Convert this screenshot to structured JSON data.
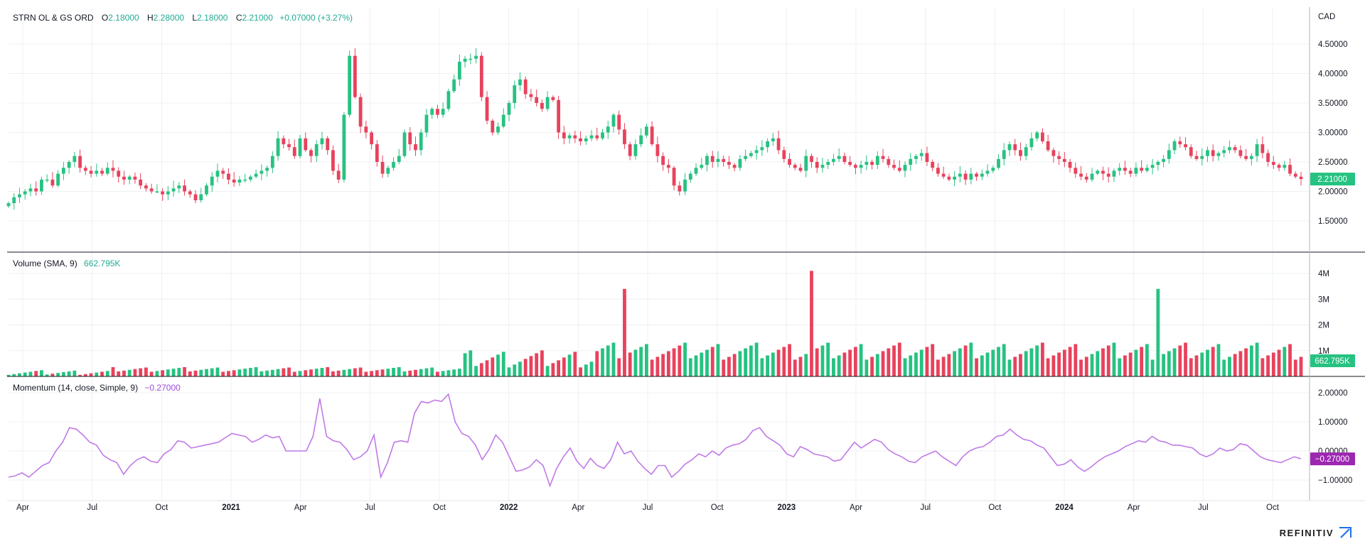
{
  "header": {
    "symbol": "STRN OL & GS ORD",
    "open_label": "O",
    "open": "2.18000",
    "high_label": "H",
    "high": "2.28000",
    "low_label": "L",
    "low": "2.18000",
    "close_label": "C",
    "close": "2.21000",
    "change": "+0.07000 (+3.27%)"
  },
  "currency": "CAD",
  "price_badge": "2.21000",
  "volume_badge": "662.795K",
  "momentum_badge": "−0.27000",
  "volume_legend": {
    "title": "Volume (SMA, 9)",
    "value": "662.795K"
  },
  "momentum_legend": {
    "title": "Momentum (14, close, Simple, 9)",
    "value": "−0.27000"
  },
  "brand": "REFINITIV",
  "colors": {
    "up": "#26c281",
    "down": "#e8425c",
    "momentum": "#c07ae6",
    "badge_up": "#26c281",
    "badge_momentum": "#9c27b0"
  },
  "chart_data": {
    "type": "candlestick",
    "x_axis": {
      "labels": [
        "Apr",
        "Jul",
        "Oct",
        "2021",
        "Apr",
        "Jul",
        "Oct",
        "2022",
        "Apr",
        "Jul",
        "Oct",
        "2023",
        "Apr",
        "Jul",
        "Oct",
        "2024",
        "Apr",
        "Jul",
        "Oct"
      ],
      "bold_labels": [
        "2021",
        "2022",
        "2023",
        "2024"
      ],
      "range": [
        "2020-03",
        "2024-10"
      ]
    },
    "price_panel": {
      "y_ticks": [
        "4.50000",
        "4.00000",
        "3.50000",
        "3.00000",
        "2.50000",
        "2.00000",
        "1.50000"
      ],
      "ylim": [
        1.1,
        4.95
      ],
      "unit": "CAD",
      "close_series": [
        1.8,
        1.9,
        1.95,
        2.0,
        2.05,
        2.0,
        2.2,
        2.2,
        2.1,
        2.3,
        2.4,
        2.5,
        2.6,
        2.4,
        2.35,
        2.3,
        2.35,
        2.3,
        2.4,
        2.35,
        2.25,
        2.2,
        2.25,
        2.2,
        2.1,
        2.05,
        2.0,
        2.0,
        1.95,
        2.0,
        2.05,
        2.1,
        2.0,
        1.95,
        1.85,
        1.95,
        2.1,
        2.25,
        2.35,
        2.3,
        2.2,
        2.15,
        2.2,
        2.2,
        2.25,
        2.3,
        2.35,
        2.4,
        2.6,
        2.9,
        2.8,
        2.75,
        2.6,
        2.9,
        2.7,
        2.6,
        2.8,
        2.9,
        2.7,
        2.35,
        2.2,
        3.3,
        4.3,
        3.6,
        3.1,
        3.0,
        2.8,
        2.5,
        2.3,
        2.4,
        2.5,
        2.6,
        3.0,
        2.8,
        2.7,
        3.0,
        3.3,
        3.4,
        3.3,
        3.4,
        3.7,
        3.9,
        4.2,
        4.25,
        4.25,
        4.3,
        3.6,
        3.2,
        3.0,
        3.1,
        3.3,
        3.5,
        3.8,
        3.9,
        3.65,
        3.6,
        3.5,
        3.4,
        3.6,
        3.55,
        3.0,
        2.9,
        2.95,
        2.9,
        2.85,
        2.9,
        2.95,
        2.9,
        3.0,
        3.1,
        3.3,
        3.05,
        2.8,
        2.6,
        2.8,
        2.95,
        3.1,
        2.8,
        2.6,
        2.45,
        2.4,
        2.1,
        2.0,
        2.2,
        2.3,
        2.4,
        2.45,
        2.6,
        2.5,
        2.55,
        2.5,
        2.45,
        2.4,
        2.55,
        2.6,
        2.65,
        2.7,
        2.75,
        2.85,
        2.9,
        2.7,
        2.55,
        2.45,
        2.4,
        2.35,
        2.6,
        2.5,
        2.4,
        2.45,
        2.5,
        2.55,
        2.6,
        2.5,
        2.45,
        2.4,
        2.45,
        2.5,
        2.45,
        2.6,
        2.55,
        2.45,
        2.4,
        2.35,
        2.45,
        2.55,
        2.6,
        2.65,
        2.5,
        2.4,
        2.3,
        2.25,
        2.2,
        2.25,
        2.3,
        2.2,
        2.3,
        2.25,
        2.3,
        2.35,
        2.4,
        2.55,
        2.7,
        2.8,
        2.7,
        2.6,
        2.75,
        2.9,
        3.0,
        2.85,
        2.7,
        2.6,
        2.55,
        2.5,
        2.4,
        2.3,
        2.25,
        2.2,
        2.3,
        2.35,
        2.3,
        2.25,
        2.35,
        2.4,
        2.35,
        2.3,
        2.4,
        2.35,
        2.4,
        2.45,
        2.5,
        2.55,
        2.7,
        2.85,
        2.8,
        2.75,
        2.6,
        2.55,
        2.6,
        2.7,
        2.6,
        2.65,
        2.7,
        2.75,
        2.7,
        2.6,
        2.55,
        2.6,
        2.8,
        2.65,
        2.5,
        2.45,
        2.4,
        2.45,
        2.3,
        2.25,
        2.21
      ]
    },
    "volume_panel": {
      "y_ticks": [
        "4M",
        "3M",
        "2M",
        "1M"
      ],
      "ylim": [
        0,
        4200000
      ],
      "sma_period": 9,
      "spikes": [
        {
          "month": "2022-06",
          "value": 3400000,
          "direction": "down"
        },
        {
          "month": "2023-02",
          "value": 4100000,
          "direction": "down"
        },
        {
          "month": "2024-05",
          "value": 3400000,
          "direction": "down"
        }
      ]
    },
    "momentum_panel": {
      "y_ticks": [
        "2.00000",
        "1.00000",
        "0.00000",
        "−1.00000"
      ],
      "ylim": [
        -1.6,
        2.2
      ],
      "params": "14, close, Simple, 9",
      "series": [
        -0.9,
        -0.85,
        -0.75,
        -0.9,
        -0.7,
        -0.5,
        -0.4,
        0.0,
        0.3,
        0.8,
        0.75,
        0.55,
        0.3,
        0.2,
        -0.15,
        -0.3,
        -0.4,
        -0.8,
        -0.5,
        -0.3,
        -0.2,
        -0.35,
        -0.4,
        -0.1,
        0.05,
        0.35,
        0.3,
        0.1,
        0.15,
        0.2,
        0.25,
        0.3,
        0.45,
        0.6,
        0.55,
        0.5,
        0.3,
        0.4,
        0.55,
        0.45,
        0.5,
        0.0,
        0.0,
        0.0,
        0.0,
        0.5,
        1.8,
        0.5,
        0.35,
        0.3,
        0.05,
        -0.3,
        -0.2,
        0.0,
        0.55,
        -0.9,
        -0.4,
        0.3,
        0.35,
        0.3,
        1.3,
        1.7,
        1.65,
        1.75,
        1.7,
        1.95,
        1.0,
        0.6,
        0.5,
        0.2,
        -0.3,
        0.05,
        0.55,
        0.3,
        -0.2,
        -0.7,
        -0.65,
        -0.55,
        -0.3,
        -0.5,
        -1.2,
        -0.6,
        -0.2,
        0.1,
        -0.35,
        -0.6,
        -0.25,
        -0.5,
        -0.6,
        -0.3,
        0.3,
        -0.1,
        0.0,
        -0.35,
        -0.6,
        -0.8,
        -0.5,
        -0.5,
        -0.9,
        -0.7,
        -0.45,
        -0.3,
        -0.1,
        -0.2,
        0.0,
        -0.15,
        0.1,
        0.2,
        0.25,
        0.4,
        0.7,
        0.8,
        0.5,
        0.35,
        0.2,
        -0.1,
        -0.2,
        0.15,
        0.05,
        -0.1,
        -0.15,
        -0.2,
        -0.35,
        -0.3,
        0.0,
        0.3,
        0.1,
        0.25,
        0.4,
        0.3,
        0.05,
        -0.1,
        -0.2,
        -0.35,
        -0.4,
        -0.2,
        -0.1,
        0.0,
        -0.2,
        -0.35,
        -0.5,
        -0.2,
        0.0,
        0.1,
        0.15,
        0.3,
        0.5,
        0.55,
        0.75,
        0.55,
        0.4,
        0.35,
        0.2,
        0.1,
        -0.2,
        -0.5,
        -0.45,
        -0.3,
        -0.55,
        -0.7,
        -0.55,
        -0.35,
        -0.2,
        -0.1,
        0.0,
        0.15,
        0.25,
        0.35,
        0.3,
        0.5,
        0.35,
        0.3,
        0.2,
        0.2,
        0.15,
        0.1,
        -0.1,
        -0.2,
        -0.1,
        0.1,
        0.0,
        0.05,
        0.25,
        0.2,
        0.0,
        -0.2,
        -0.3,
        -0.35,
        -0.4,
        -0.3,
        -0.2,
        -0.27
      ]
    }
  }
}
